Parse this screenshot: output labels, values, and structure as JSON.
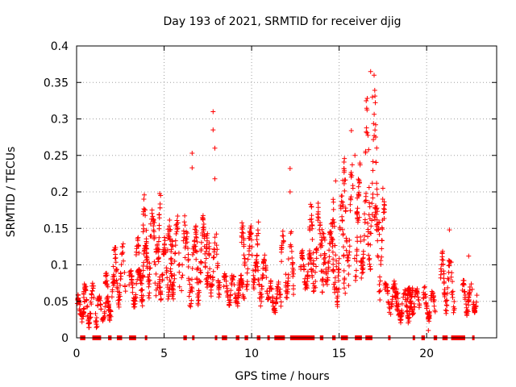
{
  "chart_data": {
    "type": "scatter",
    "title": "Day 193 of 2021, SRMTID for receiver djig",
    "xlabel": "GPS time / hours",
    "ylabel": "SRMTID / TECUs",
    "xlim": [
      0,
      24
    ],
    "ylim": [
      0,
      0.4
    ],
    "grid": true,
    "marker": "+",
    "color": "#ff0000",
    "x_ticks": [
      0,
      5,
      10,
      15,
      20
    ],
    "x_tick_labels": [
      "0",
      "5",
      "10",
      "15",
      "20"
    ],
    "y_ticks": [
      0,
      0.05,
      0.1,
      0.15,
      0.2,
      0.25,
      0.3,
      0.35,
      0.4
    ],
    "y_tick_labels": [
      "0",
      "0.05",
      "0.1",
      "0.15",
      "0.2",
      "0.25",
      "0.3",
      "0.35",
      "0.4"
    ],
    "clusters": [
      {
        "x": [
          0.0,
          0.5
        ],
        "y": [
          0.02,
          0.06
        ]
      },
      {
        "x": [
          0.4,
          1.2
        ],
        "y": [
          0.01,
          0.08
        ]
      },
      {
        "x": [
          1.2,
          1.9
        ],
        "y": [
          0.02,
          0.06
        ]
      },
      {
        "x": [
          1.6,
          2.2
        ],
        "y": [
          0.02,
          0.09
        ]
      },
      {
        "x": [
          2.1,
          2.8
        ],
        "y": [
          0.04,
          0.13
        ]
      },
      {
        "x": [
          3.0,
          3.8
        ],
        "y": [
          0.04,
          0.1
        ]
      },
      {
        "x": [
          3.4,
          4.2
        ],
        "y": [
          0.06,
          0.14
        ]
      },
      {
        "x": [
          3.8,
          4.8
        ],
        "y": [
          0.05,
          0.2
        ]
      },
      {
        "x": [
          4.5,
          5.5
        ],
        "y": [
          0.05,
          0.14
        ]
      },
      {
        "x": [
          5.2,
          6.2
        ],
        "y": [
          0.05,
          0.17
        ]
      },
      {
        "x": [
          6.2,
          7.0
        ],
        "y": [
          0.04,
          0.15
        ]
      },
      {
        "x": [
          6.7,
          7.6
        ],
        "y": [
          0.06,
          0.17
        ]
      },
      {
        "x": [
          7.4,
          8.2
        ],
        "y": [
          0.05,
          0.15
        ]
      },
      {
        "x": [
          8.4,
          9.6
        ],
        "y": [
          0.04,
          0.09
        ]
      },
      {
        "x": [
          9.4,
          10.4
        ],
        "y": [
          0.06,
          0.16
        ]
      },
      {
        "x": [
          10.2,
          11.0
        ],
        "y": [
          0.04,
          0.12
        ]
      },
      {
        "x": [
          11.0,
          11.7
        ],
        "y": [
          0.03,
          0.08
        ]
      },
      {
        "x": [
          11.7,
          12.4
        ],
        "y": [
          0.05,
          0.15
        ]
      },
      {
        "x": [
          12.8,
          13.6
        ],
        "y": [
          0.06,
          0.12
        ]
      },
      {
        "x": [
          13.3,
          14.2
        ],
        "y": [
          0.06,
          0.19
        ]
      },
      {
        "x": [
          14.0,
          14.8
        ],
        "y": [
          0.06,
          0.16
        ]
      },
      {
        "x": [
          14.6,
          15.4
        ],
        "y": [
          0.04,
          0.2
        ]
      },
      {
        "x": [
          15.2,
          16.2
        ],
        "y": [
          0.07,
          0.25
        ]
      },
      {
        "x": [
          16.0,
          16.8
        ],
        "y": [
          0.08,
          0.2
        ]
      },
      {
        "x": [
          16.5,
          17.3
        ],
        "y": [
          0.1,
          0.34
        ]
      },
      {
        "x": [
          17.0,
          17.6
        ],
        "y": [
          0.05,
          0.2
        ]
      },
      {
        "x": [
          17.6,
          18.4
        ],
        "y": [
          0.03,
          0.08
        ]
      },
      {
        "x": [
          18.2,
          19.2
        ],
        "y": [
          0.02,
          0.07
        ]
      },
      {
        "x": [
          18.9,
          19.6
        ],
        "y": [
          0.03,
          0.07
        ]
      },
      {
        "x": [
          19.8,
          20.5
        ],
        "y": [
          0.02,
          0.07
        ]
      },
      {
        "x": [
          20.8,
          21.6
        ],
        "y": [
          0.03,
          0.12
        ]
      },
      {
        "x": [
          22.0,
          22.9
        ],
        "y": [
          0.03,
          0.08
        ]
      }
    ],
    "spikes": [
      {
        "x": 4.8,
        "y": 0.195
      },
      {
        "x": 6.6,
        "y": 0.253
      },
      {
        "x": 6.6,
        "y": 0.233
      },
      {
        "x": 7.8,
        "y": 0.31
      },
      {
        "x": 7.8,
        "y": 0.285
      },
      {
        "x": 7.9,
        "y": 0.26
      },
      {
        "x": 7.9,
        "y": 0.218
      },
      {
        "x": 12.2,
        "y": 0.232
      },
      {
        "x": 12.2,
        "y": 0.2
      },
      {
        "x": 14.8,
        "y": 0.215
      },
      {
        "x": 15.7,
        "y": 0.284
      },
      {
        "x": 15.9,
        "y": 0.25
      },
      {
        "x": 16.8,
        "y": 0.365
      },
      {
        "x": 17.0,
        "y": 0.36
      },
      {
        "x": 16.9,
        "y": 0.33
      },
      {
        "x": 17.5,
        "y": 0.205
      },
      {
        "x": 21.3,
        "y": 0.148
      },
      {
        "x": 20.1,
        "y": 0.01
      },
      {
        "x": 22.4,
        "y": 0.112
      }
    ],
    "gap_markers_y": 0,
    "gap_intervals": [
      [
        0.2,
        0.5
      ],
      [
        0.9,
        1.4
      ],
      [
        1.8,
        2.0
      ],
      [
        2.3,
        2.6
      ],
      [
        3.0,
        3.4
      ],
      [
        3.9,
        4.0
      ],
      [
        6.1,
        6.3
      ],
      [
        6.6,
        6.7
      ],
      [
        7.9,
        8.0
      ],
      [
        8.3,
        8.6
      ],
      [
        9.1,
        9.3
      ],
      [
        9.6,
        9.8
      ],
      [
        10.3,
        10.5
      ],
      [
        10.9,
        11.0
      ],
      [
        11.3,
        11.9
      ],
      [
        12.2,
        13.6
      ],
      [
        13.9,
        14.1
      ],
      [
        14.6,
        14.8
      ],
      [
        15.1,
        15.5
      ],
      [
        15.9,
        16.3
      ],
      [
        16.5,
        16.9
      ],
      [
        17.8,
        17.9
      ],
      [
        19.2,
        19.3
      ],
      [
        19.7,
        19.9
      ],
      [
        20.4,
        20.6
      ],
      [
        20.9,
        21.2
      ],
      [
        21.4,
        22.2
      ],
      [
        22.6,
        22.7
      ]
    ]
  }
}
